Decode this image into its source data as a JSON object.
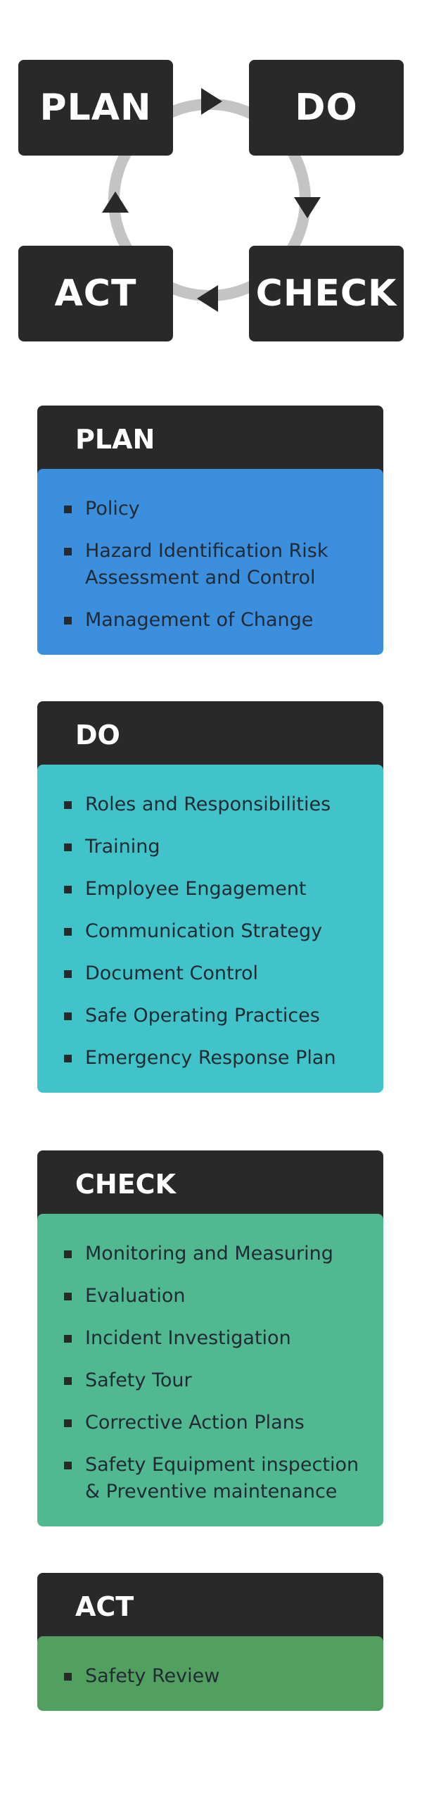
{
  "cycle": {
    "plan_label": "PLAN",
    "do_label": "DO",
    "check_label": "CHECK",
    "act_label": "ACT"
  },
  "colors": {
    "dark": "#2a292a",
    "ring": "#c4c4c4",
    "plan": "#3b8fdc",
    "do": "#41c4c9",
    "check": "#50b991",
    "act": "#52a060",
    "text": "#222a33"
  },
  "sections": [
    {
      "title": "PLAN",
      "items": [
        "Policy",
        "Hazard Identification Risk Assessment and Control",
        "Management of Change"
      ]
    },
    {
      "title": "DO",
      "items": [
        "Roles and Responsibilities",
        "Training",
        "Employee Engagement",
        "Communication Strategy",
        "Document Control",
        "Safe Operating Practices",
        "Emergency Response Plan"
      ]
    },
    {
      "title": "CHECK",
      "items": [
        "Monitoring and Measuring",
        "Evaluation",
        "Incident Investigation",
        "Safety Tour",
        "Corrective Action Plans",
        "Safety Equipment inspection & Preventive maintenance"
      ]
    },
    {
      "title": "ACT",
      "items": [
        "Safety Review"
      ]
    }
  ]
}
